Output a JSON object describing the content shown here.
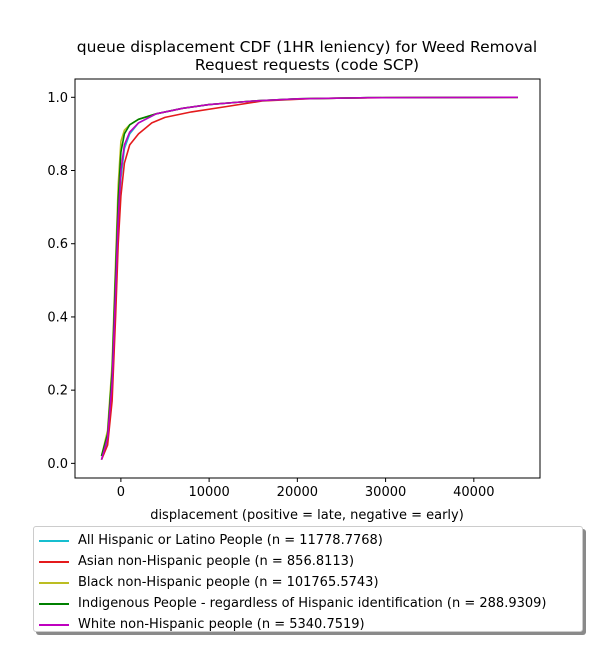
{
  "chart_data": {
    "type": "line",
    "title_lines": [
      "queue displacement CDF (1HR leniency) for Weed Removal",
      "Request  requests (code SCP)"
    ],
    "xlabel": "displacement (positive = late, negative = early)",
    "ylabel": "",
    "xlim": [
      -5200,
      47500
    ],
    "ylim": [
      -0.04,
      1.05
    ],
    "xticks": [
      0,
      10000,
      20000,
      30000,
      40000
    ],
    "xtick_labels": [
      "0",
      "10000",
      "20000",
      "30000",
      "40000"
    ],
    "yticks": [
      0.0,
      0.2,
      0.4,
      0.6,
      0.8,
      1.0
    ],
    "ytick_labels": [
      "0.0",
      "0.2",
      "0.4",
      "0.6",
      "0.8",
      "1.0"
    ],
    "grid": false,
    "legend_position": "below",
    "series": [
      {
        "name": "All Hispanic or Latino People (n = 11778.7768)",
        "color": "#17becf",
        "points": [
          [
            -2200,
            0.01
          ],
          [
            -1500,
            0.06
          ],
          [
            -1000,
            0.2
          ],
          [
            -600,
            0.45
          ],
          [
            -300,
            0.65
          ],
          [
            0,
            0.78
          ],
          [
            400,
            0.86
          ],
          [
            1000,
            0.9
          ],
          [
            2000,
            0.93
          ],
          [
            4000,
            0.955
          ],
          [
            7000,
            0.97
          ],
          [
            10000,
            0.98
          ],
          [
            15000,
            0.99
          ],
          [
            20000,
            0.996
          ],
          [
            28000,
            0.999
          ],
          [
            45000,
            1.0
          ]
        ]
      },
      {
        "name": "Asian non-Hispanic people (n = 856.8113)",
        "color": "#e41a1c",
        "points": [
          [
            -2200,
            0.01
          ],
          [
            -1500,
            0.05
          ],
          [
            -1000,
            0.17
          ],
          [
            -600,
            0.4
          ],
          [
            -300,
            0.6
          ],
          [
            0,
            0.73
          ],
          [
            400,
            0.82
          ],
          [
            1000,
            0.87
          ],
          [
            2000,
            0.9
          ],
          [
            3500,
            0.93
          ],
          [
            5000,
            0.945
          ],
          [
            8000,
            0.96
          ],
          [
            12000,
            0.975
          ],
          [
            16000,
            0.99
          ],
          [
            22000,
            0.997
          ],
          [
            30000,
            0.999
          ],
          [
            45000,
            1.0
          ]
        ]
      },
      {
        "name": "Black non-Hispanic people (n = 101765.5743)",
        "color": "#bcbd22",
        "points": [
          [
            -2200,
            0.02
          ],
          [
            -1500,
            0.09
          ],
          [
            -1000,
            0.27
          ],
          [
            -600,
            0.55
          ],
          [
            -300,
            0.76
          ],
          [
            0,
            0.88
          ],
          [
            400,
            0.91
          ],
          [
            1000,
            0.925
          ],
          [
            2000,
            0.94
          ],
          [
            4000,
            0.955
          ],
          [
            7000,
            0.97
          ],
          [
            10000,
            0.98
          ],
          [
            15000,
            0.99
          ],
          [
            20000,
            0.996
          ],
          [
            28000,
            0.999
          ],
          [
            45000,
            1.0
          ]
        ]
      },
      {
        "name": "Indigenous People - regardless of Hispanic identification (n = 288.9309)",
        "color": "#008000",
        "points": [
          [
            -2200,
            0.02
          ],
          [
            -1500,
            0.08
          ],
          [
            -1000,
            0.25
          ],
          [
            -600,
            0.52
          ],
          [
            -300,
            0.72
          ],
          [
            0,
            0.85
          ],
          [
            400,
            0.9
          ],
          [
            1000,
            0.925
          ],
          [
            2000,
            0.94
          ],
          [
            4000,
            0.955
          ],
          [
            7000,
            0.97
          ],
          [
            10000,
            0.98
          ],
          [
            15000,
            0.99
          ],
          [
            20000,
            0.996
          ],
          [
            28000,
            0.999
          ],
          [
            45000,
            1.0
          ]
        ]
      },
      {
        "name": "White non-Hispanic people (n = 5340.7519)",
        "color": "#bf00bf",
        "points": [
          [
            -2200,
            0.01
          ],
          [
            -1500,
            0.07
          ],
          [
            -1000,
            0.22
          ],
          [
            -600,
            0.47
          ],
          [
            -300,
            0.67
          ],
          [
            0,
            0.8
          ],
          [
            400,
            0.87
          ],
          [
            1000,
            0.905
          ],
          [
            2000,
            0.93
          ],
          [
            4000,
            0.955
          ],
          [
            7000,
            0.97
          ],
          [
            10000,
            0.98
          ],
          [
            15000,
            0.99
          ],
          [
            20000,
            0.996
          ],
          [
            28000,
            0.999
          ],
          [
            45000,
            1.0
          ]
        ]
      }
    ]
  }
}
